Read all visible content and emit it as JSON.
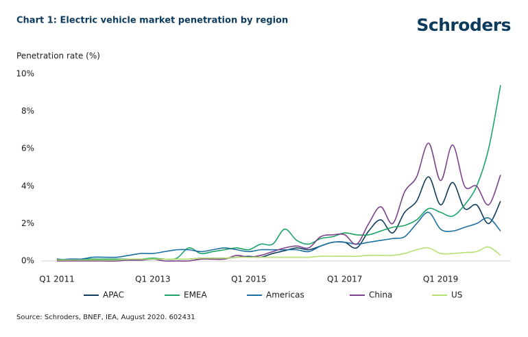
{
  "chart_data": {
    "type": "line",
    "title": "Chart 1: Electric vehicle market penetration by region",
    "brand": "Schroders",
    "ylabel": "Penetration rate (%)",
    "source": "Source: Schroders, BNEF, IEA, August 2020. 602431",
    "categories": [
      "Q1 2011",
      null,
      null,
      null,
      null,
      null,
      null,
      null,
      "Q1 2013",
      null,
      null,
      null,
      null,
      null,
      null,
      null,
      "Q1 2015",
      null,
      null,
      null,
      null,
      null,
      null,
      null,
      "Q1 2017",
      null,
      null,
      null,
      null,
      null,
      null,
      null,
      "Q1 2019",
      null,
      null,
      null,
      null,
      null
    ],
    "ylim": [
      0,
      10
    ],
    "yticks": [
      {
        "value": 0,
        "label": "0%"
      },
      {
        "value": 2,
        "label": "2%"
      },
      {
        "value": 4,
        "label": "4%"
      },
      {
        "value": 6,
        "label": "6%"
      },
      {
        "value": 8,
        "label": "8%"
      },
      {
        "value": 10,
        "label": "10%"
      }
    ],
    "legend": "bottom",
    "series": [
      {
        "name": "APAC",
        "color": "#0d3b5e",
        "values": [
          0.1,
          0.05,
          0.05,
          0.05,
          0.05,
          0.05,
          0.05,
          0.05,
          0.1,
          0.1,
          0.1,
          0.1,
          0.15,
          0.15,
          0.15,
          0.2,
          0.25,
          0.2,
          0.4,
          0.55,
          0.7,
          0.6,
          0.8,
          1.0,
          1.0,
          0.7,
          1.6,
          2.2,
          1.5,
          2.6,
          3.2,
          4.5,
          3.0,
          4.2,
          2.8,
          3.0,
          2.0,
          3.2
        ]
      },
      {
        "name": "EMEA",
        "color": "#1aa364",
        "values": [
          0.05,
          0.1,
          0.1,
          0.1,
          0.1,
          0.1,
          0.1,
          0.1,
          0.15,
          0.1,
          0.15,
          0.7,
          0.4,
          0.5,
          0.6,
          0.7,
          0.6,
          0.9,
          0.9,
          1.7,
          1.1,
          0.9,
          1.2,
          1.3,
          1.5,
          1.4,
          1.4,
          1.6,
          1.8,
          1.9,
          2.2,
          2.8,
          2.6,
          2.4,
          3.0,
          4.0,
          6.0,
          9.4
        ]
      },
      {
        "name": "Americas",
        "color": "#1b6fa0",
        "values": [
          0.0,
          0.1,
          0.1,
          0.2,
          0.2,
          0.2,
          0.3,
          0.4,
          0.4,
          0.5,
          0.6,
          0.6,
          0.5,
          0.6,
          0.7,
          0.6,
          0.5,
          0.6,
          0.6,
          0.6,
          0.6,
          0.5,
          0.8,
          1.0,
          1.0,
          0.9,
          1.0,
          1.1,
          1.2,
          1.3,
          2.0,
          2.6,
          1.7,
          1.6,
          1.8,
          2.0,
          2.3,
          1.6
        ]
      },
      {
        "name": "China",
        "color": "#7b3f8c",
        "values": [
          0.0,
          0.0,
          0.0,
          0.0,
          0.0,
          0.0,
          0.05,
          0.05,
          0.1,
          0.0,
          0.0,
          0.0,
          0.1,
          0.1,
          0.1,
          0.3,
          0.2,
          0.3,
          0.5,
          0.7,
          0.8,
          0.7,
          1.3,
          1.4,
          1.4,
          0.9,
          2.0,
          2.9,
          2.0,
          3.7,
          4.5,
          6.3,
          4.3,
          6.2,
          4.0,
          4.0,
          3.0,
          4.6
        ]
      },
      {
        "name": "US",
        "color": "#b5e070",
        "values": [
          0.05,
          0.05,
          0.05,
          0.05,
          0.05,
          0.05,
          0.1,
          0.1,
          0.1,
          0.1,
          0.1,
          0.1,
          0.15,
          0.15,
          0.15,
          0.2,
          0.2,
          0.2,
          0.2,
          0.2,
          0.2,
          0.2,
          0.25,
          0.25,
          0.25,
          0.25,
          0.3,
          0.3,
          0.3,
          0.4,
          0.6,
          0.7,
          0.4,
          0.4,
          0.45,
          0.5,
          0.75,
          0.3
        ]
      }
    ]
  }
}
